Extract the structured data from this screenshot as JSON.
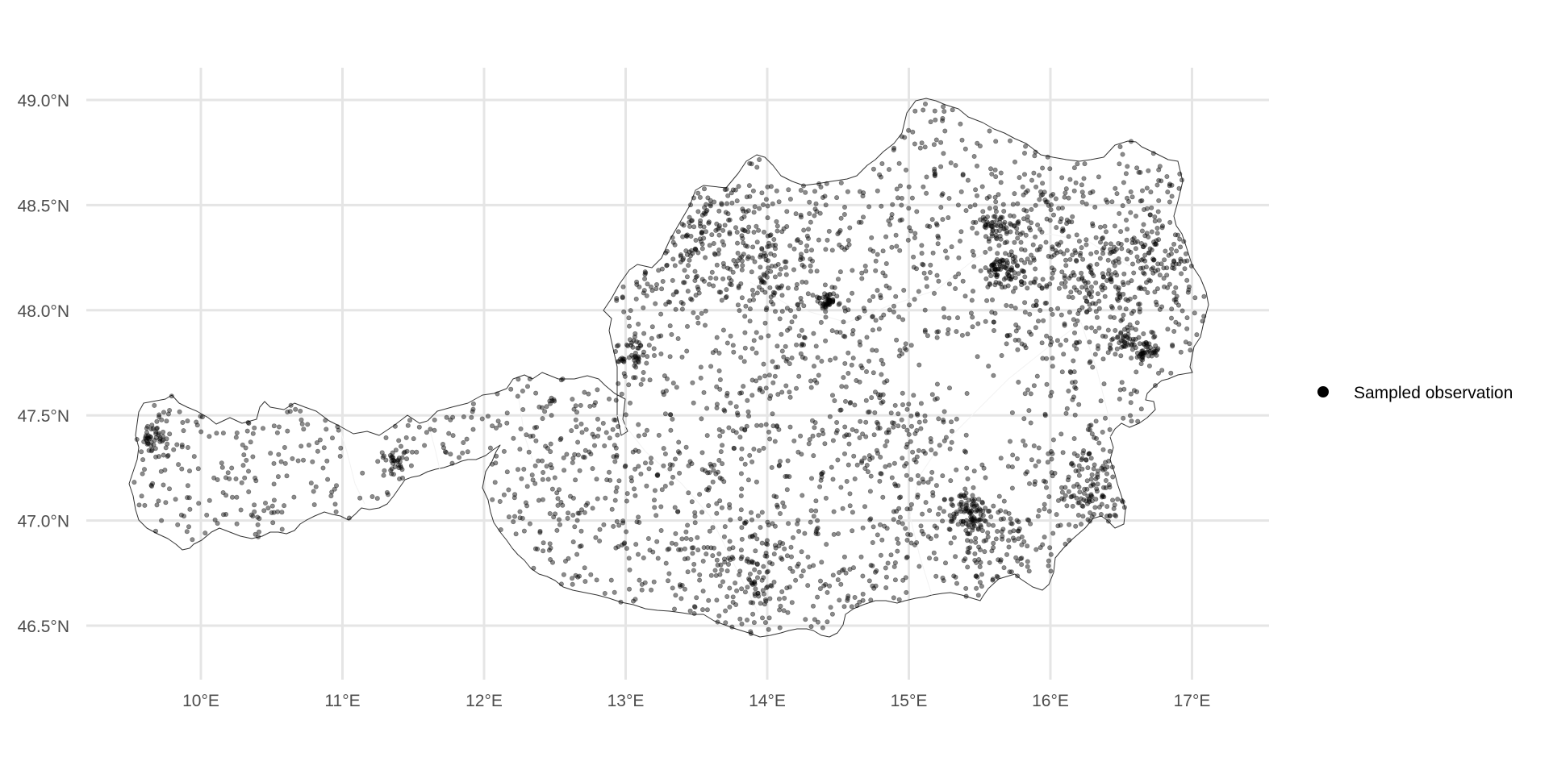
{
  "legend": {
    "label": "Sampled observation",
    "symbol": "filled-circle"
  },
  "map": {
    "region": "Austria",
    "point_color": "#000000",
    "point_opacity": 0.45,
    "grid_color": "#e5e5e5",
    "outline_color": "#333333",
    "background": "#ffffff"
  },
  "chart_data": {
    "type": "scatter",
    "title": "",
    "xlabel": "",
    "ylabel": "",
    "xlim": [
      9.3,
      17.6
    ],
    "ylim": [
      46.25,
      49.15
    ],
    "grid": true,
    "legend_position": "right",
    "x_ticks": [
      10,
      11,
      12,
      13,
      14,
      15,
      16,
      17
    ],
    "x_tick_labels": [
      "10°E",
      "11°E",
      "12°E",
      "13°E",
      "14°E",
      "15°E",
      "16°E",
      "17°E"
    ],
    "y_ticks": [
      46.5,
      47.0,
      47.5,
      48.0,
      48.5,
      49.0
    ],
    "y_tick_labels": [
      "46.5°N",
      "47.0°N",
      "47.5°N",
      "48.0°N",
      "48.5°N",
      "49.0°N"
    ],
    "series": [
      {
        "name": "Sampled observation"
      }
    ]
  }
}
